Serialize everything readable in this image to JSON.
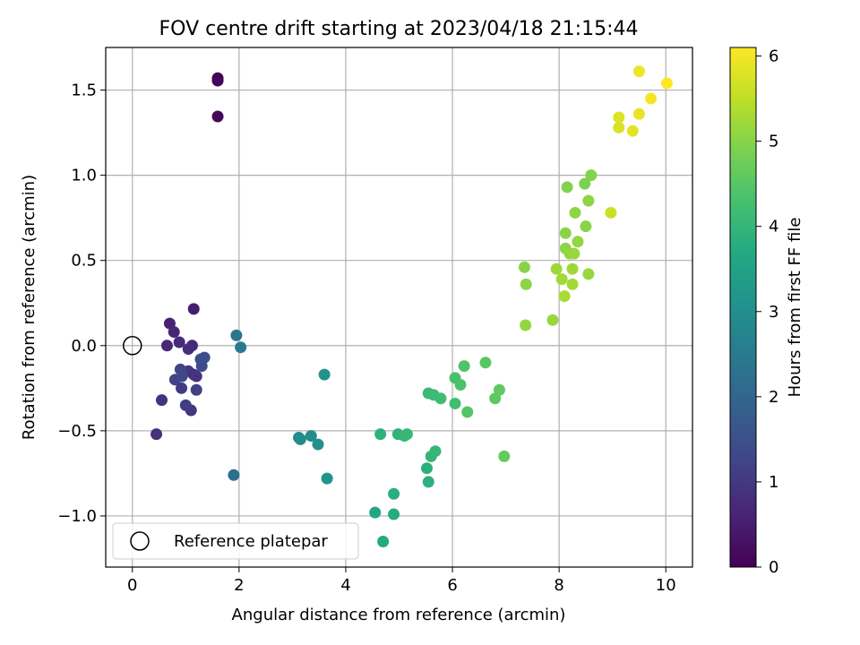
{
  "chart_data": {
    "type": "scatter",
    "title": "FOV centre drift starting at 2023/04/18 21:15:44",
    "xlabel": "Angular distance from reference (arcmin)",
    "ylabel": "Rotation from reference (arcmin)",
    "xlim": [
      -0.5,
      10.5
    ],
    "ylim": [
      -1.3,
      1.75
    ],
    "xticks": [
      0,
      2,
      4,
      6,
      8,
      10
    ],
    "xtick_labels": [
      "0",
      "2",
      "4",
      "6",
      "8",
      "10"
    ],
    "yticks": [
      -1.0,
      -0.5,
      0.0,
      0.5,
      1.0,
      1.5
    ],
    "ytick_labels": [
      "−1.0",
      "−0.5",
      "0.0",
      "0.5",
      "1.0",
      "1.5"
    ],
    "grid": true,
    "legend": {
      "location": "lower-left",
      "entries": [
        {
          "label": "Reference platepar",
          "marker": "open-circle"
        }
      ]
    },
    "reference_point": {
      "x": 0,
      "y": 0
    },
    "colorbar": {
      "label": "Hours from first FF file",
      "colormap": "viridis",
      "range": [
        0,
        6.1
      ],
      "ticks": [
        0,
        1,
        2,
        3,
        4,
        5,
        6
      ],
      "tick_labels": [
        "0",
        "1",
        "2",
        "3",
        "4",
        "5",
        "6"
      ]
    },
    "points": [
      {
        "x": 1.6,
        "y": 1.57,
        "c": 0.02
      },
      {
        "x": 1.6,
        "y": 1.555,
        "c": 0.05
      },
      {
        "x": 1.6,
        "y": 1.345,
        "c": 0.1
      },
      {
        "x": 1.15,
        "y": 0.215,
        "c": 0.5
      },
      {
        "x": 0.7,
        "y": 0.13,
        "c": 0.6
      },
      {
        "x": 0.78,
        "y": 0.08,
        "c": 0.65
      },
      {
        "x": 0.65,
        "y": 0.0,
        "c": 0.7
      },
      {
        "x": 0.88,
        "y": 0.02,
        "c": 0.75
      },
      {
        "x": 1.12,
        "y": 0.0,
        "c": 0.7
      },
      {
        "x": 1.05,
        "y": -0.02,
        "c": 0.8
      },
      {
        "x": 0.45,
        "y": -0.52,
        "c": 0.85
      },
      {
        "x": 0.55,
        "y": -0.32,
        "c": 0.9
      },
      {
        "x": 1.1,
        "y": -0.38,
        "c": 0.95
      },
      {
        "x": 1.05,
        "y": -0.15,
        "c": 1.0
      },
      {
        "x": 1.15,
        "y": -0.17,
        "c": 0.85
      },
      {
        "x": 1.2,
        "y": -0.18,
        "c": 0.9
      },
      {
        "x": 0.92,
        "y": -0.25,
        "c": 1.05
      },
      {
        "x": 1.0,
        "y": -0.35,
        "c": 1.1
      },
      {
        "x": 1.2,
        "y": -0.26,
        "c": 1.15
      },
      {
        "x": 0.8,
        "y": -0.2,
        "c": 1.2
      },
      {
        "x": 0.9,
        "y": -0.14,
        "c": 1.25
      },
      {
        "x": 0.93,
        "y": -0.18,
        "c": 1.3
      },
      {
        "x": 1.3,
        "y": -0.12,
        "c": 1.4
      },
      {
        "x": 1.28,
        "y": -0.08,
        "c": 1.45
      },
      {
        "x": 1.35,
        "y": -0.07,
        "c": 1.5
      },
      {
        "x": 1.9,
        "y": -0.76,
        "c": 2.2
      },
      {
        "x": 1.95,
        "y": 0.06,
        "c": 2.4
      },
      {
        "x": 2.03,
        "y": -0.01,
        "c": 2.5
      },
      {
        "x": 3.12,
        "y": -0.54,
        "c": 2.9
      },
      {
        "x": 3.15,
        "y": -0.55,
        "c": 2.95
      },
      {
        "x": 3.35,
        "y": -0.53,
        "c": 3.0
      },
      {
        "x": 3.48,
        "y": -0.58,
        "c": 3.05
      },
      {
        "x": 3.6,
        "y": -0.17,
        "c": 3.1
      },
      {
        "x": 3.65,
        "y": -0.78,
        "c": 3.15
      },
      {
        "x": 4.55,
        "y": -0.98,
        "c": 3.6
      },
      {
        "x": 4.7,
        "y": -1.15,
        "c": 3.7
      },
      {
        "x": 4.9,
        "y": -0.99,
        "c": 3.75
      },
      {
        "x": 4.9,
        "y": -0.87,
        "c": 3.8
      },
      {
        "x": 4.65,
        "y": -0.52,
        "c": 3.9
      },
      {
        "x": 4.98,
        "y": -0.52,
        "c": 3.95
      },
      {
        "x": 5.1,
        "y": -0.53,
        "c": 4.0
      },
      {
        "x": 5.15,
        "y": -0.52,
        "c": 4.05
      },
      {
        "x": 5.52,
        "y": -0.72,
        "c": 3.85
      },
      {
        "x": 5.55,
        "y": -0.8,
        "c": 3.85
      },
      {
        "x": 5.6,
        "y": -0.65,
        "c": 4.0
      },
      {
        "x": 5.68,
        "y": -0.62,
        "c": 4.05
      },
      {
        "x": 5.55,
        "y": -0.28,
        "c": 4.1
      },
      {
        "x": 5.65,
        "y": -0.29,
        "c": 4.15
      },
      {
        "x": 5.78,
        "y": -0.31,
        "c": 4.2
      },
      {
        "x": 6.05,
        "y": -0.34,
        "c": 4.25
      },
      {
        "x": 6.05,
        "y": -0.19,
        "c": 4.3
      },
      {
        "x": 6.15,
        "y": -0.23,
        "c": 4.35
      },
      {
        "x": 6.22,
        "y": -0.12,
        "c": 4.4
      },
      {
        "x": 6.28,
        "y": -0.39,
        "c": 4.45
      },
      {
        "x": 6.62,
        "y": -0.1,
        "c": 4.5
      },
      {
        "x": 6.8,
        "y": -0.31,
        "c": 4.55
      },
      {
        "x": 6.88,
        "y": -0.26,
        "c": 4.6
      },
      {
        "x": 6.97,
        "y": -0.65,
        "c": 4.65
      },
      {
        "x": 7.35,
        "y": 0.46,
        "c": 5.0
      },
      {
        "x": 7.38,
        "y": 0.36,
        "c": 5.05
      },
      {
        "x": 7.37,
        "y": 0.12,
        "c": 5.1
      },
      {
        "x": 7.88,
        "y": 0.15,
        "c": 5.15
      },
      {
        "x": 7.95,
        "y": 0.45,
        "c": 5.2
      },
      {
        "x": 8.05,
        "y": 0.39,
        "c": 5.25
      },
      {
        "x": 8.1,
        "y": 0.29,
        "c": 5.3
      },
      {
        "x": 8.12,
        "y": 0.66,
        "c": 5.0
      },
      {
        "x": 8.12,
        "y": 0.57,
        "c": 5.05
      },
      {
        "x": 8.15,
        "y": 0.93,
        "c": 4.95
      },
      {
        "x": 8.2,
        "y": 0.54,
        "c": 5.1
      },
      {
        "x": 8.28,
        "y": 0.54,
        "c": 5.15
      },
      {
        "x": 8.25,
        "y": 0.45,
        "c": 5.2
      },
      {
        "x": 8.25,
        "y": 0.36,
        "c": 5.25
      },
      {
        "x": 8.3,
        "y": 0.78,
        "c": 5.05
      },
      {
        "x": 8.35,
        "y": 0.61,
        "c": 5.1
      },
      {
        "x": 8.48,
        "y": 0.95,
        "c": 4.9
      },
      {
        "x": 8.5,
        "y": 0.7,
        "c": 5.0
      },
      {
        "x": 8.55,
        "y": 0.85,
        "c": 5.05
      },
      {
        "x": 8.55,
        "y": 0.42,
        "c": 5.15
      },
      {
        "x": 8.6,
        "y": 1.0,
        "c": 4.95
      },
      {
        "x": 8.97,
        "y": 0.78,
        "c": 5.6
      },
      {
        "x": 9.12,
        "y": 1.34,
        "c": 5.8
      },
      {
        "x": 9.12,
        "y": 1.28,
        "c": 5.75
      },
      {
        "x": 9.38,
        "y": 1.26,
        "c": 5.85
      },
      {
        "x": 9.5,
        "y": 1.61,
        "c": 5.95
      },
      {
        "x": 9.5,
        "y": 1.36,
        "c": 5.9
      },
      {
        "x": 9.72,
        "y": 1.45,
        "c": 6.0
      },
      {
        "x": 10.02,
        "y": 1.54,
        "c": 6.1
      }
    ]
  }
}
